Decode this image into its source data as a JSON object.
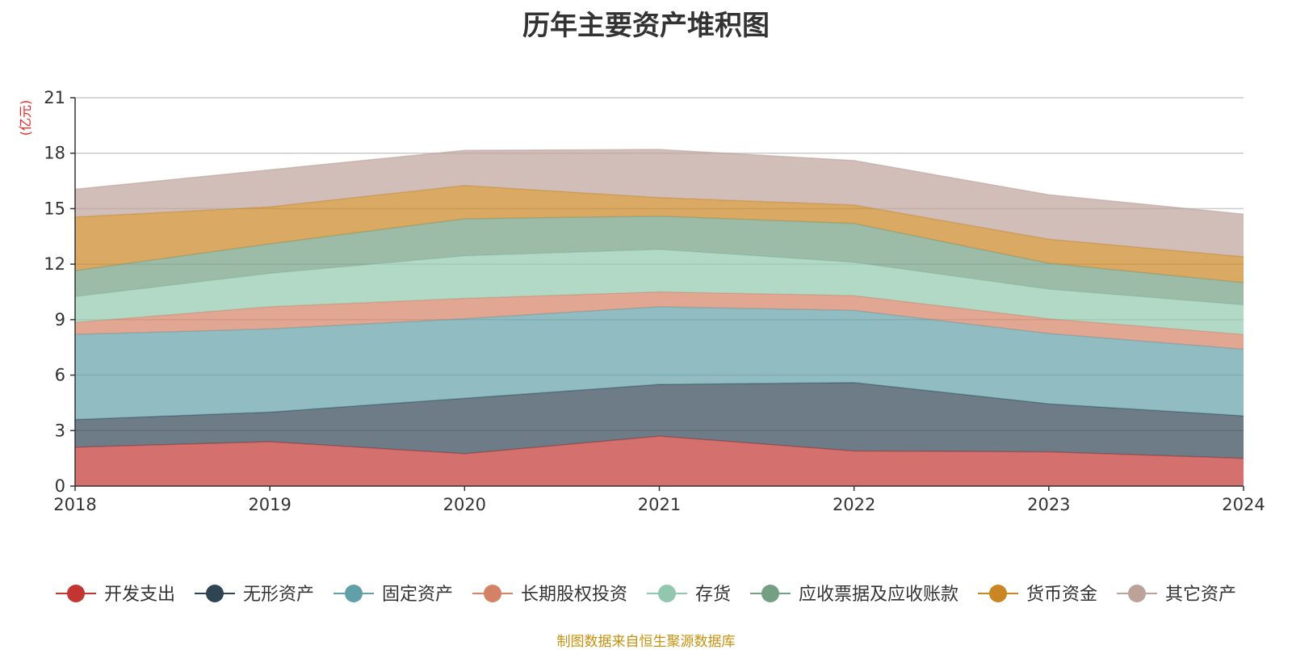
{
  "chart_data": {
    "type": "area",
    "stacked": true,
    "title": "历年主要资产堆积图",
    "unit": "(亿元)",
    "source": "制图数据来自恒生聚源数据库",
    "x": [
      "2018",
      "2019",
      "2020",
      "2021",
      "2022",
      "2023",
      "2024"
    ],
    "ylim": [
      0,
      21
    ],
    "yticks": [
      0,
      3,
      6,
      9,
      12,
      15,
      18,
      21
    ],
    "grid": true,
    "legend_position": "bottom",
    "series": [
      {
        "name": "开发支出",
        "color": "#c23531",
        "values": [
          2.1,
          2.4,
          1.75,
          2.7,
          1.9,
          1.85,
          1.5
        ]
      },
      {
        "name": "无形资产",
        "color": "#2f4554",
        "values": [
          1.5,
          1.6,
          3.0,
          2.8,
          3.7,
          2.6,
          2.3
        ]
      },
      {
        "name": "固定资产",
        "color": "#61a0a8",
        "values": [
          4.6,
          4.5,
          4.3,
          4.2,
          3.9,
          3.8,
          3.6
        ]
      },
      {
        "name": "长期股权投资",
        "color": "#d48265",
        "values": [
          0.65,
          1.2,
          1.1,
          0.8,
          0.8,
          0.8,
          0.8
        ]
      },
      {
        "name": "存货",
        "color": "#91c7ae",
        "values": [
          1.4,
          1.8,
          2.3,
          2.3,
          1.8,
          1.6,
          1.6
        ]
      },
      {
        "name": "应收票据及应收账款",
        "color": "#749f83",
        "values": [
          1.4,
          1.6,
          2.0,
          1.8,
          2.1,
          1.4,
          1.2
        ]
      },
      {
        "name": "货币资金",
        "color": "#ca8622",
        "values": [
          2.9,
          2.0,
          1.8,
          1.0,
          1.0,
          1.3,
          1.4
        ]
      },
      {
        "name": "其它资产",
        "color": "#bda29a",
        "values": [
          1.5,
          2.0,
          1.9,
          2.6,
          2.4,
          2.4,
          2.3
        ]
      }
    ]
  }
}
